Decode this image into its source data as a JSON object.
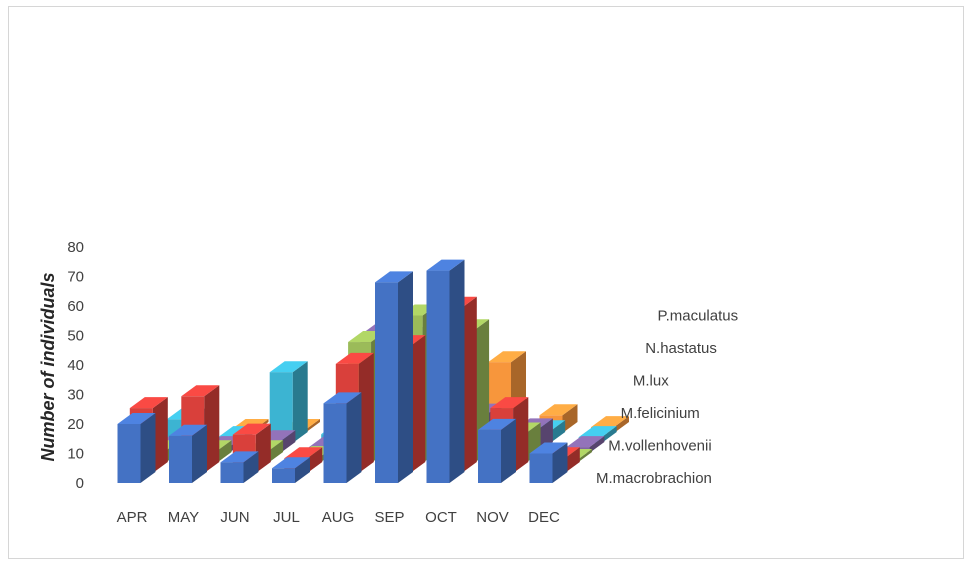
{
  "chart_data": {
    "type": "bar",
    "title": "",
    "xlabel": "",
    "ylabel": "Number of individuals",
    "ylim": [
      0,
      80
    ],
    "yticks": [
      0,
      10,
      20,
      30,
      40,
      50,
      60,
      70,
      80
    ],
    "categories": [
      "APR",
      "MAY",
      "JUN",
      "JUL",
      "AUG",
      "SEP",
      "OCT",
      "NOV",
      "DEC"
    ],
    "series": [
      {
        "name": "M.macrobrachion",
        "color": "#4472c4",
        "values": [
          20,
          16,
          7,
          5,
          27,
          68,
          72,
          18,
          10
        ]
      },
      {
        "name": "M.vollenhovenii",
        "color": "#d9403b",
        "values": [
          22,
          26,
          13,
          5,
          37,
          43,
          56,
          22,
          5
        ]
      },
      {
        "name": "M.felicinium",
        "color": "#9bbb59",
        "values": [
          4,
          4,
          4,
          2,
          41,
          50,
          45,
          10,
          1
        ]
      },
      {
        "name": "M.lux",
        "color": "#8064a2",
        "values": [
          2,
          2,
          4,
          2,
          40,
          40,
          13,
          8,
          2
        ]
      },
      {
        "name": "N.hastatus",
        "color": "#3cb4d2",
        "values": [
          8,
          2,
          24,
          3,
          12,
          16,
          8,
          4,
          2
        ]
      },
      {
        "name": "P.maculatus",
        "color": "#f7963c",
        "values": [
          2,
          1,
          1,
          1,
          1,
          28,
          24,
          6,
          2
        ]
      }
    ],
    "grid": false,
    "legend": "series labels along depth axis on the right"
  }
}
